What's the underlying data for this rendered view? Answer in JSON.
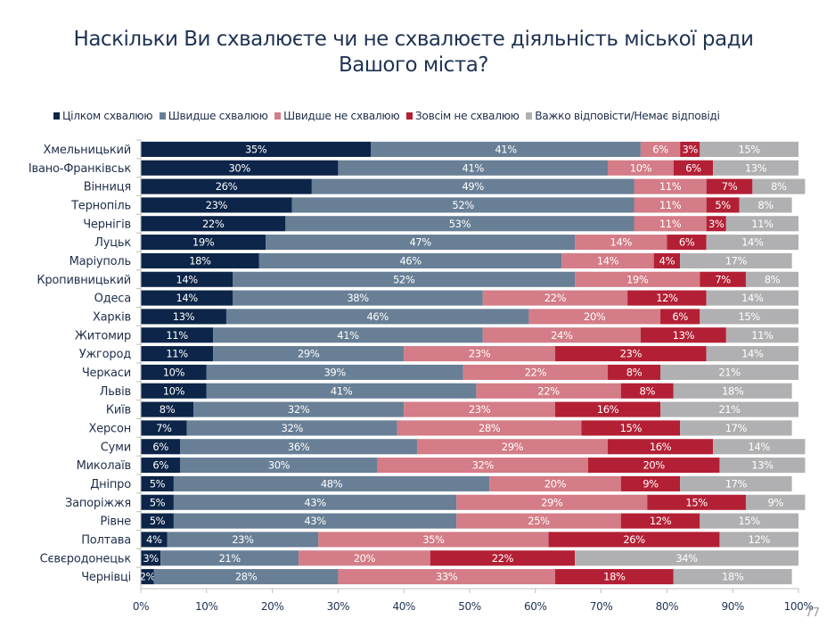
{
  "page_number": "77",
  "chart_data": {
    "type": "bar",
    "orientation": "horizontal",
    "stacked": "percent",
    "title": "Наскільки Ви схвалюєте чи не схвалюєте діяльність міської ради Вашого міста?",
    "title_lines": [
      "Наскільки Ви схвалюєте чи не схвалюєте діяльність міської ради",
      "Вашого міста?"
    ],
    "xlabel": "",
    "ylabel": "",
    "xlim": [
      0,
      100
    ],
    "x_ticks": [
      "0%",
      "10%",
      "20%",
      "30%",
      "40%",
      "50%",
      "60%",
      "70%",
      "80%",
      "90%",
      "100%"
    ],
    "grid": false,
    "legend_position": "top",
    "categories": [
      "Хмельницький",
      "Івано-Франківськ",
      "Вінниця",
      "Тернопіль",
      "Чернігів",
      "Луцьк",
      "Маріуполь",
      "Кропивницький",
      "Одеса",
      "Харків",
      "Житомир",
      "Ужгород",
      "Черкаси",
      "Львів",
      "Київ",
      "Херсон",
      "Суми",
      "Миколаїв",
      "Дніпро",
      "Запоріжжя",
      "Рівне",
      "Полтава",
      "Сєвєродонецьк",
      "Чернівці"
    ],
    "series": [
      {
        "name": "Цілком схвалюю",
        "color": "#0c2548",
        "values": [
          35,
          30,
          26,
          23,
          22,
          19,
          18,
          14,
          14,
          13,
          11,
          11,
          10,
          10,
          8,
          7,
          6,
          6,
          5,
          5,
          5,
          4,
          3,
          2
        ]
      },
      {
        "name": "Швидше схвалюю",
        "color": "#687f96",
        "values": [
          41,
          41,
          49,
          52,
          53,
          47,
          46,
          52,
          38,
          46,
          41,
          29,
          39,
          41,
          32,
          32,
          36,
          30,
          48,
          43,
          43,
          23,
          21,
          28
        ]
      },
      {
        "name": "Швидше не схвалюю",
        "color": "#d47c87",
        "values": [
          6,
          10,
          11,
          11,
          11,
          14,
          14,
          19,
          22,
          20,
          24,
          23,
          22,
          22,
          23,
          28,
          29,
          32,
          20,
          29,
          25,
          35,
          20,
          33
        ]
      },
      {
        "name": "Зовсім не схвалюю",
        "color": "#b32035",
        "values": [
          3,
          6,
          7,
          5,
          3,
          6,
          4,
          7,
          12,
          6,
          13,
          23,
          8,
          8,
          16,
          15,
          16,
          20,
          9,
          15,
          12,
          26,
          22,
          18
        ]
      },
      {
        "name": "Важко відповісти/Немає відповіді",
        "color": "#b0b0b2",
        "values": [
          15,
          13,
          8,
          8,
          11,
          14,
          17,
          8,
          14,
          15,
          11,
          14,
          21,
          18,
          21,
          17,
          14,
          13,
          17,
          9,
          15,
          12,
          34,
          18
        ]
      }
    ]
  }
}
